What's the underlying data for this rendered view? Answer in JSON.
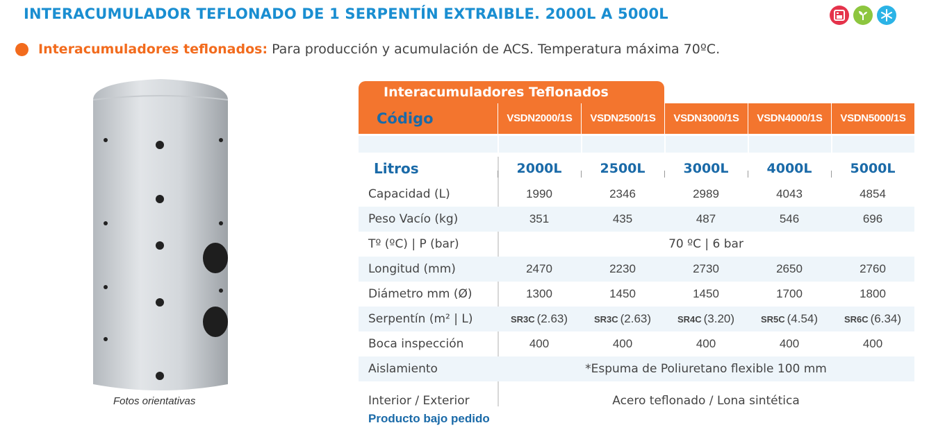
{
  "title": "INTERACUMULADOR TEFLONADO DE 1 SERPENTÍN EXTRAIBLE. 2000L  A 5000L",
  "icons": [
    "heater-icon",
    "plant-icon",
    "snowflake-icon"
  ],
  "colors": {
    "title": "#1a8ed1",
    "accent": "#f3752e",
    "label_blue": "#1a6aa8",
    "row_shade": "#eef5fa"
  },
  "subtitle": {
    "bold": "Interacumuladores teflonados:",
    "text": "Para producción y acumulación de ACS. Temperatura máxima  70ºC."
  },
  "photo_caption": "Fotos orientativas",
  "table": {
    "header": "Interacumuladores Teflonados",
    "code_label": "Código",
    "codes": [
      "VSDN2000/1S",
      "VSDN2500/1S",
      "VSDN3000/1S",
      "VSDN4000/1S",
      "VSDN5000/1S"
    ],
    "litros_label": "Litros",
    "litros": [
      "2000L",
      "2500L",
      "3000L",
      "4000L",
      "5000L"
    ],
    "rows": {
      "capacidad": {
        "label": "Capacidad (L)",
        "values": [
          "1990",
          "2346",
          "2989",
          "4043",
          "4854"
        ]
      },
      "peso": {
        "label": "Peso Vacío (kg)",
        "values": [
          "351",
          "435",
          "487",
          "546",
          "696"
        ]
      },
      "temp": {
        "label": "Tº  (ºC) | P (bar)",
        "value": "70 ºC |  6 bar"
      },
      "longitud": {
        "label": "Longitud (mm)",
        "values": [
          "2470",
          "2230",
          "2730",
          "2650",
          "2760"
        ]
      },
      "diametro": {
        "label": "Diámetro mm (Ø)",
        "values": [
          "1300",
          "1450",
          "1450",
          "1700",
          "1800"
        ]
      },
      "serpentin": {
        "label": "Serpentín (m² | L)",
        "codes": [
          "SR3C",
          "SR3C",
          "SR4C",
          "SR5C",
          "SR6C"
        ],
        "values": [
          "(2.63)",
          "(2.63)",
          "(3.20)",
          "(4.54)",
          "(6.34)"
        ]
      },
      "boca": {
        "label": "Boca inspección",
        "values": [
          "400",
          "400",
          "400",
          "400",
          "400"
        ]
      },
      "aislamiento": {
        "label": "Aislamiento",
        "value": "*Espuma de Poliuretano flexible 100 mm"
      },
      "interior": {
        "label": "Interior / Exterior",
        "value": "Acero teflonado / Lona sintética"
      }
    },
    "footer_note": "Producto bajo pedido"
  }
}
